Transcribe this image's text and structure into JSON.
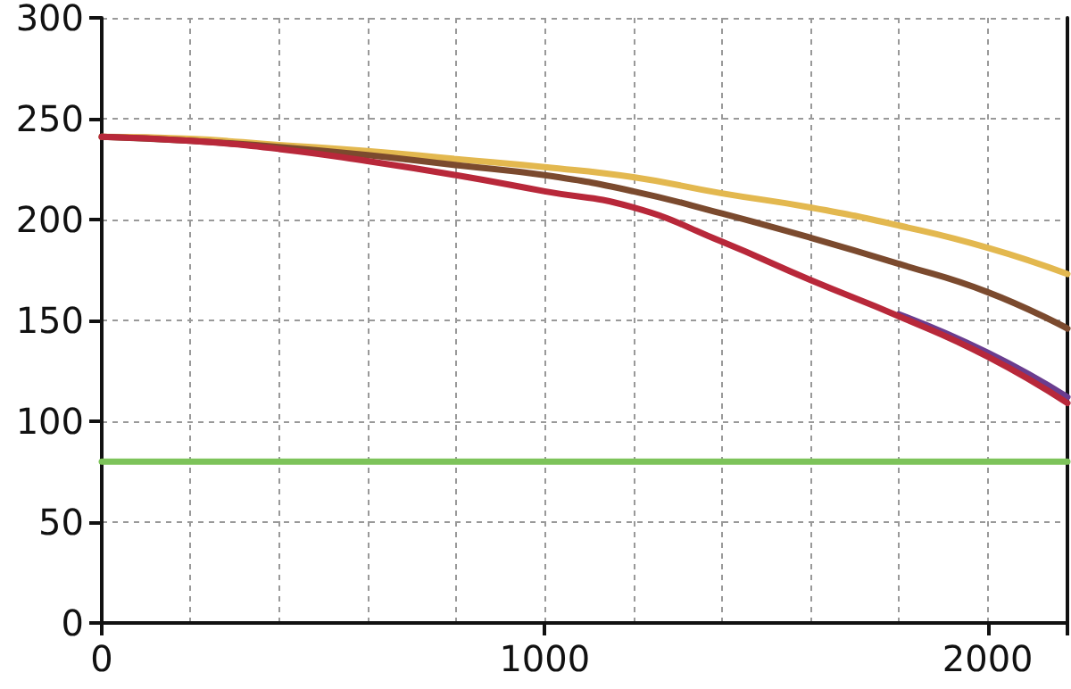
{
  "chart_data": {
    "type": "line",
    "x": [
      0,
      200,
      400,
      600,
      800,
      1000,
      1200,
      1400,
      1600,
      1800,
      2000,
      2180
    ],
    "series": [
      {
        "color": "#6a3d8f",
        "x": [
          1800,
          2000,
          2180
        ],
        "values": [
          153,
          134,
          112
        ]
      },
      {
        "color": "#7dc35a",
        "x": [
          0,
          2180
        ],
        "values": [
          80,
          80
        ]
      },
      {
        "color": "#e3b84f",
        "values": [
          241,
          240,
          237,
          234,
          230,
          226,
          221,
          213,
          206,
          197,
          186,
          173
        ]
      },
      {
        "color": "#7b4a2e",
        "values": [
          241,
          239,
          236,
          232,
          227,
          222,
          214,
          203,
          191,
          178,
          164,
          146
        ]
      },
      {
        "color": "#b8283a",
        "values": [
          241,
          239,
          235,
          229,
          222,
          214,
          206,
          189,
          170,
          152,
          132,
          109
        ]
      }
    ],
    "xlim": [
      0,
      2180
    ],
    "xticks": [
      0,
      1000,
      2000,
      {
        "value": 2180,
        "label": null
      }
    ],
    "ylim": [
      0,
      300
    ],
    "yticks": [
      0,
      50,
      100,
      150,
      200,
      250,
      300
    ],
    "grid": true,
    "marker": "none",
    "line_style": "solid"
  }
}
